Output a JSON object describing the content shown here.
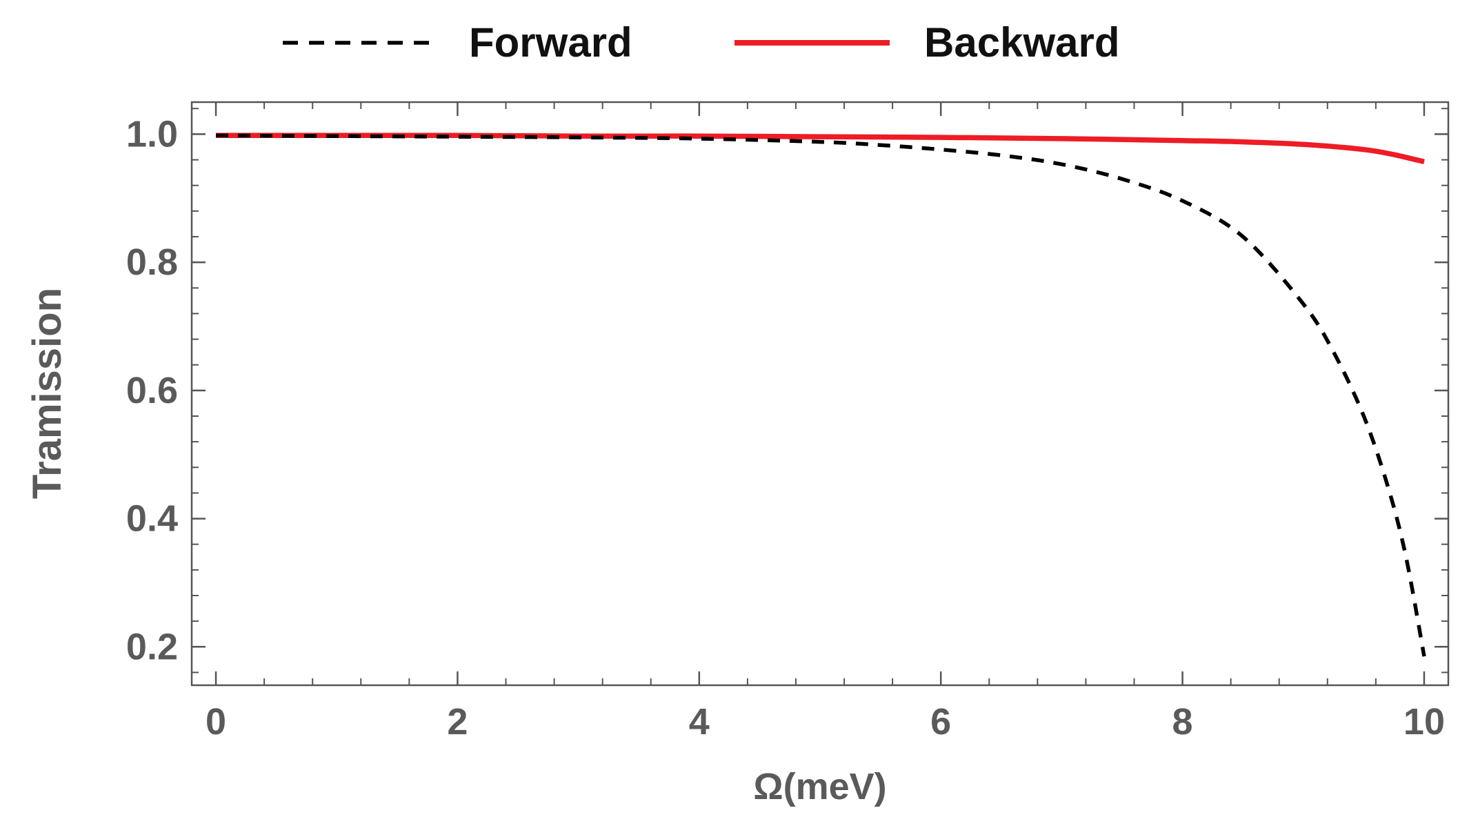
{
  "chart_data": {
    "type": "line",
    "title": "",
    "xlabel": "Ω(meV)",
    "ylabel": "Tramission",
    "xlim": [
      -0.2,
      10.2
    ],
    "ylim": [
      0.14,
      1.05
    ],
    "x_ticks": [
      0,
      2,
      4,
      6,
      8,
      10
    ],
    "x_tick_labels": [
      "0",
      "2",
      "4",
      "6",
      "8",
      "10"
    ],
    "y_ticks": [
      0.2,
      0.4,
      0.6,
      0.8,
      1.0
    ],
    "y_tick_labels": [
      "0.2",
      "0.4",
      "0.6",
      "0.8",
      "1.0"
    ],
    "x_minor_step": 0.4,
    "y_minor_step": 0.04,
    "grid": false,
    "legend_position": "top-center",
    "series": [
      {
        "name": "Forward",
        "style": "dashed",
        "color": "#000000",
        "x": [
          0,
          1,
          2,
          3,
          4,
          5,
          5.5,
          6,
          6.5,
          7,
          7.5,
          8,
          8.5,
          9,
          9.25,
          9.5,
          9.7,
          9.85,
          10
        ],
        "y": [
          0.998,
          0.997,
          0.996,
          0.995,
          0.993,
          0.988,
          0.983,
          0.976,
          0.967,
          0.953,
          0.93,
          0.896,
          0.84,
          0.735,
          0.66,
          0.56,
          0.45,
          0.34,
          0.185
        ]
      },
      {
        "name": "Backward",
        "style": "solid",
        "color": "#ee1c25",
        "x": [
          0,
          1,
          2,
          3,
          4,
          5,
          6,
          7,
          8,
          8.5,
          9,
          9.5,
          9.75,
          10
        ],
        "y": [
          0.998,
          0.998,
          0.998,
          0.997,
          0.997,
          0.996,
          0.995,
          0.993,
          0.99,
          0.988,
          0.984,
          0.976,
          0.968,
          0.957
        ]
      }
    ]
  }
}
